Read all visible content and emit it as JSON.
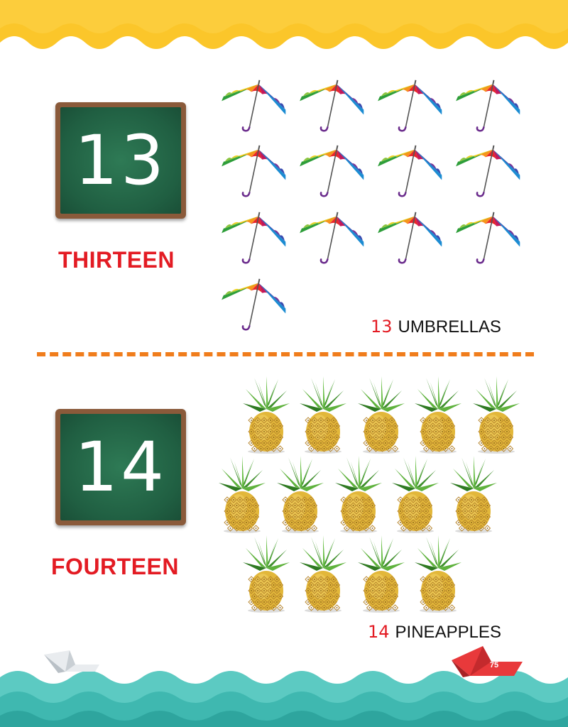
{
  "section_13": {
    "numeral": "13",
    "word": "THIRTEEN",
    "caption_number": "13",
    "caption_label": "UMBRELLAS",
    "item_icon": "umbrella-icon",
    "item_count": 13
  },
  "section_14": {
    "numeral": "14",
    "word": "FOURTEEN",
    "caption_number": "14",
    "caption_label": "PINEAPPLES",
    "item_icon": "pineapple-icon",
    "item_count": 14
  },
  "page_number": "75",
  "colors": {
    "top_wave": "#fbc62a",
    "word_red": "#e31b23",
    "divider_orange": "#f07d1c",
    "sea_teal": "#3fb8b0",
    "board_green": "#205f42",
    "board_frame": "#8a5a3a",
    "boat_red": "#e8393b"
  }
}
